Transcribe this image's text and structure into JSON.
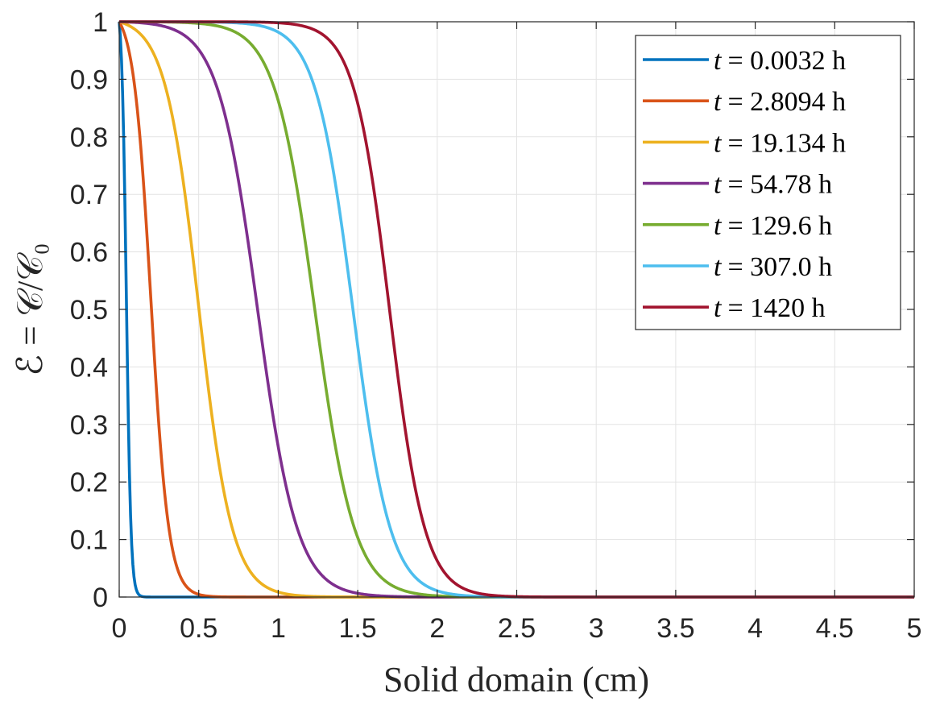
{
  "chart_data": {
    "type": "line",
    "title": "",
    "xlabel": "Solid domain (cm)",
    "ylabel": "ℰ = 𝒞/𝒞₀",
    "xlim": [
      0,
      5
    ],
    "ylim": [
      0,
      1
    ],
    "xticks": [
      "0",
      "0.5",
      "1",
      "1.5",
      "2",
      "2.5",
      "3",
      "3.5",
      "4",
      "4.5",
      "5"
    ],
    "yticks": [
      "0",
      "0.1",
      "0.2",
      "0.3",
      "0.4",
      "0.5",
      "0.6",
      "0.7",
      "0.8",
      "0.9",
      "1"
    ],
    "grid": true,
    "legend_position": "top-right",
    "series": [
      {
        "name": "t = 0.0032 h",
        "var": "t",
        "label": "= 0.0032 h",
        "color": "#0072BD",
        "midpoint": 0.045,
        "steepness": 70
      },
      {
        "name": "t = 2.8094 h",
        "var": "t",
        "label": "= 2.8094 h",
        "color": "#D95319",
        "midpoint": 0.2,
        "steepness": 18
      },
      {
        "name": "t = 19.134 h",
        "var": "t",
        "label": "= 19.134 h",
        "color": "#EDB120",
        "midpoint": 0.5,
        "steepness": 9.5
      },
      {
        "name": "t = 54.78 h",
        "var": "t",
        "label": "= 54.78 h",
        "color": "#7E2F8E",
        "midpoint": 0.87,
        "steepness": 8.0
      },
      {
        "name": "t = 129.6 h",
        "var": "t",
        "label": "= 129.6 h",
        "color": "#77AC30",
        "midpoint": 1.23,
        "steepness": 8.0
      },
      {
        "name": "t = 307.0 h",
        "var": "t",
        "label": "= 307.0 h",
        "color": "#4DBEEE",
        "midpoint": 1.47,
        "steepness": 8.5
      },
      {
        "name": "t = 1420 h",
        "var": "t",
        "label": "= 1420 h",
        "color": "#A2142F",
        "midpoint": 1.7,
        "steepness": 9.0
      }
    ]
  }
}
